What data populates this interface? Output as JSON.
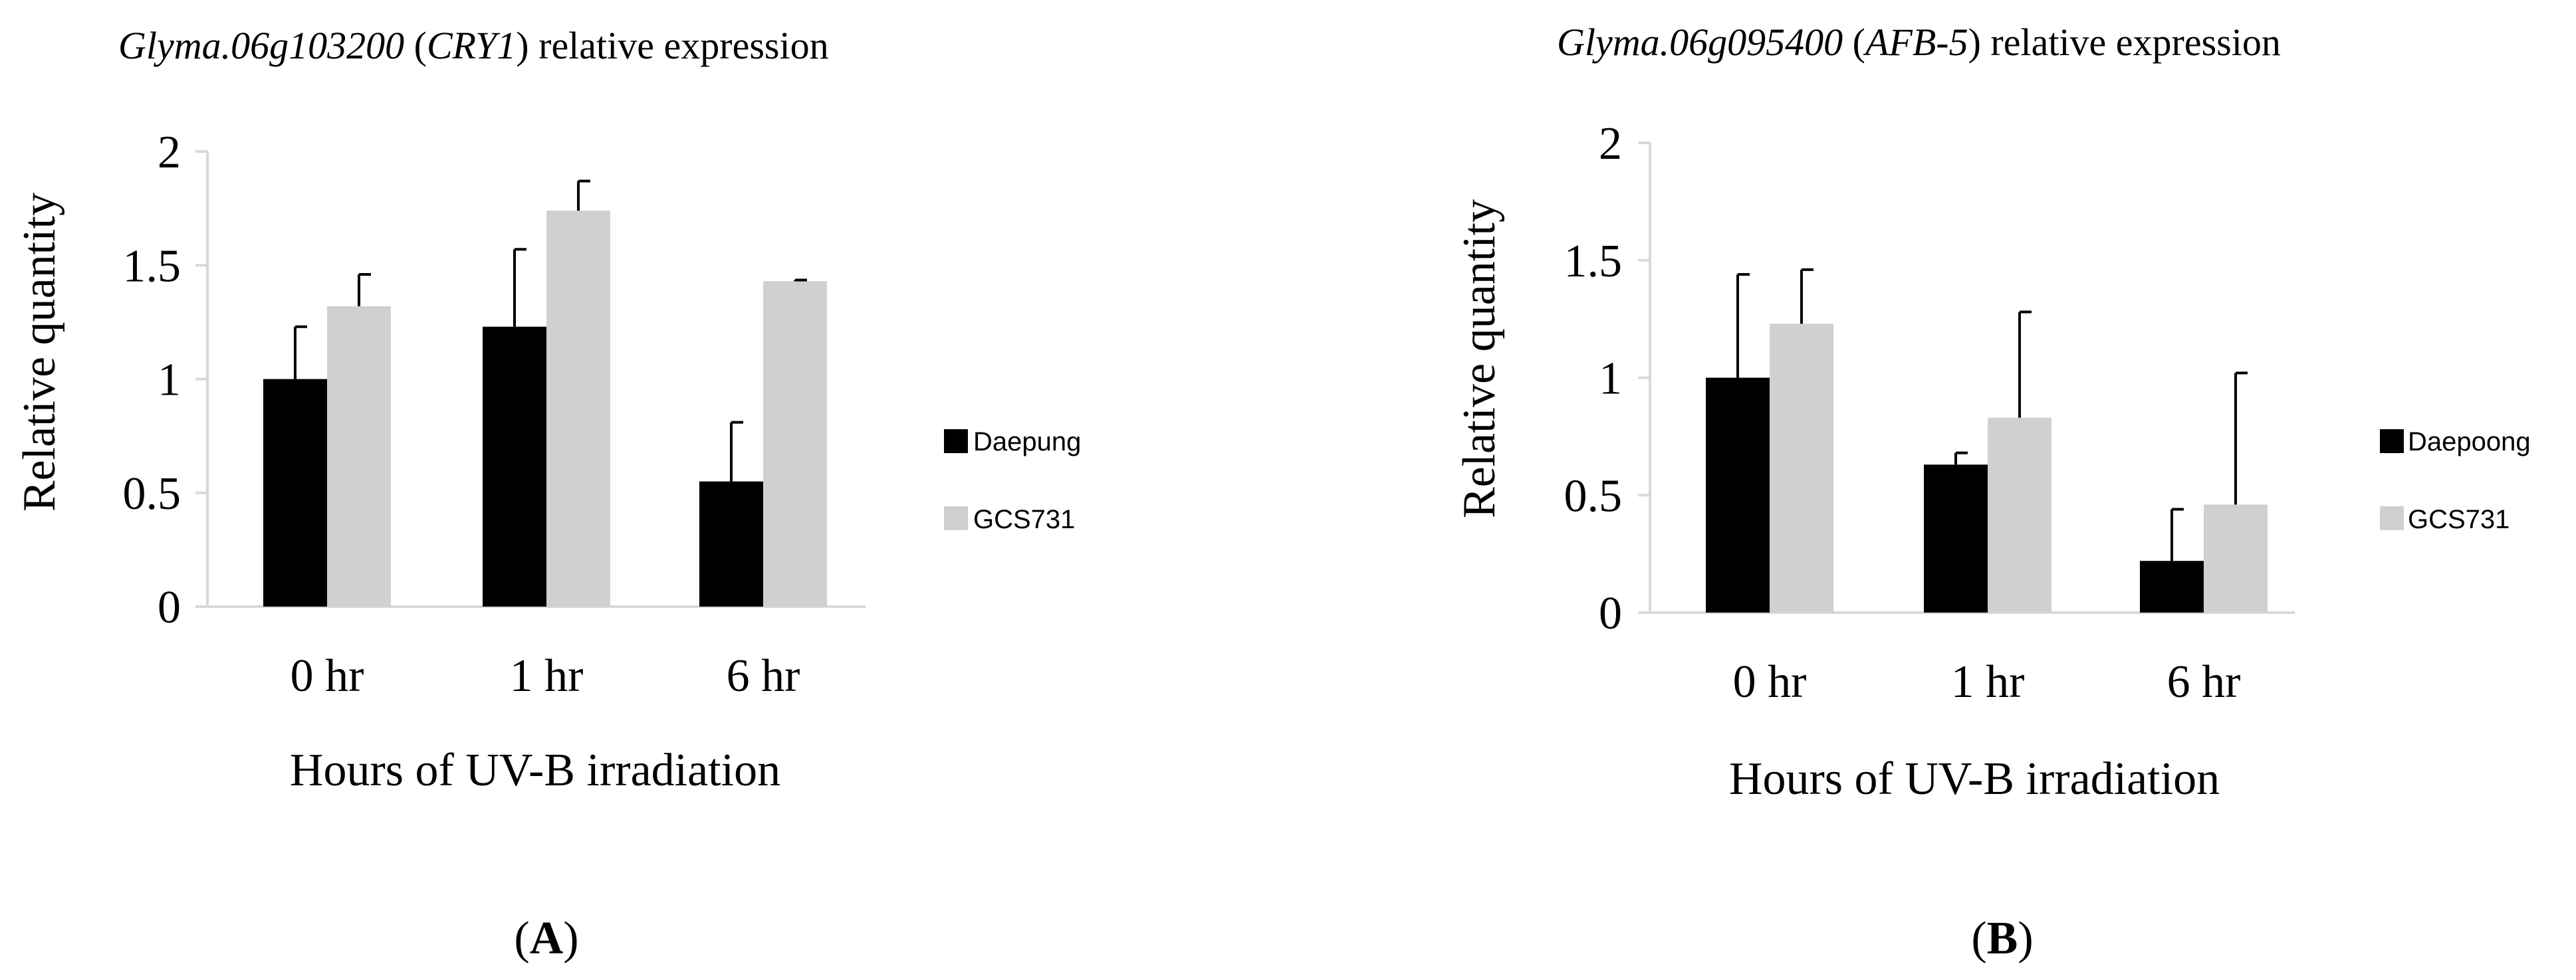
{
  "colors": {
    "series_dark": "#000000",
    "series_light": "#d0d0d0",
    "axis": "#d9d9d9",
    "error_bar": "#000000"
  },
  "chart_data": [
    {
      "type": "bar",
      "panel_label": "A",
      "title": {
        "gene": "Glyma.06g103200",
        "symbol": "CRY1",
        "suffix": "relative expression"
      },
      "xlabel": "Hours of UV-B irradiation",
      "ylabel": "Relative quantity",
      "categories": [
        "0 hr",
        "1 hr",
        "6 hr"
      ],
      "ylim": [
        0,
        2
      ],
      "yticks": [
        {
          "value": 0,
          "label": "0"
        },
        {
          "value": 0.5,
          "label": "0.5"
        },
        {
          "value": 1,
          "label": "1"
        },
        {
          "value": 1.5,
          "label": "1.5"
        },
        {
          "value": 2,
          "label": "2"
        }
      ],
      "grid": false,
      "legend_position": "right",
      "series": [
        {
          "name": "Daepung",
          "color": "#000000",
          "values": [
            1.0,
            1.23,
            0.55
          ],
          "errors": [
            0.23,
            0.34,
            0.26
          ]
        },
        {
          "name": "GCS731",
          "color": "#d0d0d0",
          "values": [
            1.32,
            1.74,
            1.43
          ],
          "errors": [
            0.14,
            0.13,
            0.005
          ]
        }
      ]
    },
    {
      "type": "bar",
      "panel_label": "B",
      "title": {
        "gene": "Glyma.06g095400",
        "symbol": "AFB-5",
        "suffix": "relative expression"
      },
      "xlabel": "Hours of UV-B irradiation",
      "ylabel": "Relative quantity",
      "categories": [
        "0 hr",
        "1 hr",
        "6 hr"
      ],
      "ylim": [
        0,
        2
      ],
      "yticks": [
        {
          "value": 0,
          "label": "0"
        },
        {
          "value": 0.5,
          "label": "0.5"
        },
        {
          "value": 1,
          "label": "1"
        },
        {
          "value": 1.5,
          "label": "1.5"
        },
        {
          "value": 2,
          "label": "2"
        }
      ],
      "grid": false,
      "legend_position": "right",
      "series": [
        {
          "name": "Daepoong",
          "color": "#000000",
          "values": [
            1.0,
            0.63,
            0.22
          ],
          "errors": [
            0.44,
            0.05,
            0.22
          ]
        },
        {
          "name": "GCS731",
          "color": "#d0d0d0",
          "values": [
            1.23,
            0.83,
            0.46
          ],
          "errors": [
            0.23,
            0.45,
            0.56
          ]
        }
      ]
    }
  ]
}
